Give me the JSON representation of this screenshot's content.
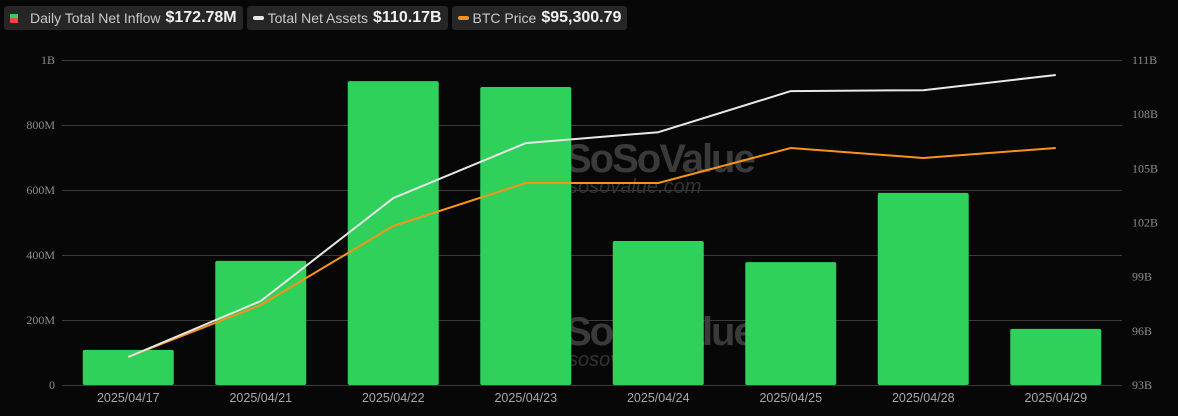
{
  "legend": {
    "inflow": {
      "label": "Daily Total Net Inflow",
      "value": "$172.78M",
      "icon": "green-red-bar-swatch"
    },
    "assets": {
      "label": "Total Net Assets",
      "value": "$110.17B",
      "icon": "white-line-swatch",
      "color": "#e8e8e8"
    },
    "btc": {
      "label": "BTC Price",
      "value": "$95,300.79",
      "icon": "orange-line-swatch",
      "color": "#f7931a"
    }
  },
  "watermark": {
    "brand": "SoSoValue",
    "url": "sosovalue.com"
  },
  "colors": {
    "bar": "#2fd15b",
    "assets_line": "#e8e8e8",
    "btc_line": "#f7931a",
    "grid": "#3a3a3a",
    "background": "#070707"
  },
  "chart_data": {
    "type": "bar",
    "title": "",
    "categories": [
      "2025/04/17",
      "2025/04/21",
      "2025/04/22",
      "2025/04/23",
      "2025/04/24",
      "2025/04/25",
      "2025/04/28",
      "2025/04/29"
    ],
    "series": [
      {
        "name": "Daily Total Net Inflow",
        "type": "bar",
        "axis": "left",
        "unit": "USD",
        "values": [
          108000000,
          382000000,
          935000000,
          917000000,
          443000000,
          378000000,
          591000000,
          172780000
        ]
      },
      {
        "name": "Total Net Assets",
        "type": "line",
        "axis": "right",
        "unit": "USD",
        "values": [
          94550000000,
          97650000000,
          103350000000,
          106400000000,
          107000000000,
          109280000000,
          109330000000,
          110170000000
        ]
      },
      {
        "name": "BTC Price",
        "type": "line",
        "axis": "hidden",
        "unit": "USD",
        "values": [
          85000,
          87562,
          91456,
          93575,
          93575,
          95300,
          94807,
          95300.79
        ]
      }
    ],
    "left_axis": {
      "ticks": [
        "0",
        "200M",
        "400M",
        "600M",
        "800M",
        "1B"
      ],
      "range": [
        0,
        1000000000
      ]
    },
    "right_axis": {
      "ticks": [
        "93B",
        "96B",
        "99B",
        "102B",
        "105B",
        "108B",
        "111B"
      ],
      "range": [
        93000000000,
        111000000000
      ]
    },
    "btc_axis_range": [
      83620,
      99640
    ],
    "xlabel": "",
    "ylabel": "",
    "grid": true,
    "legend_position": "top-left"
  }
}
